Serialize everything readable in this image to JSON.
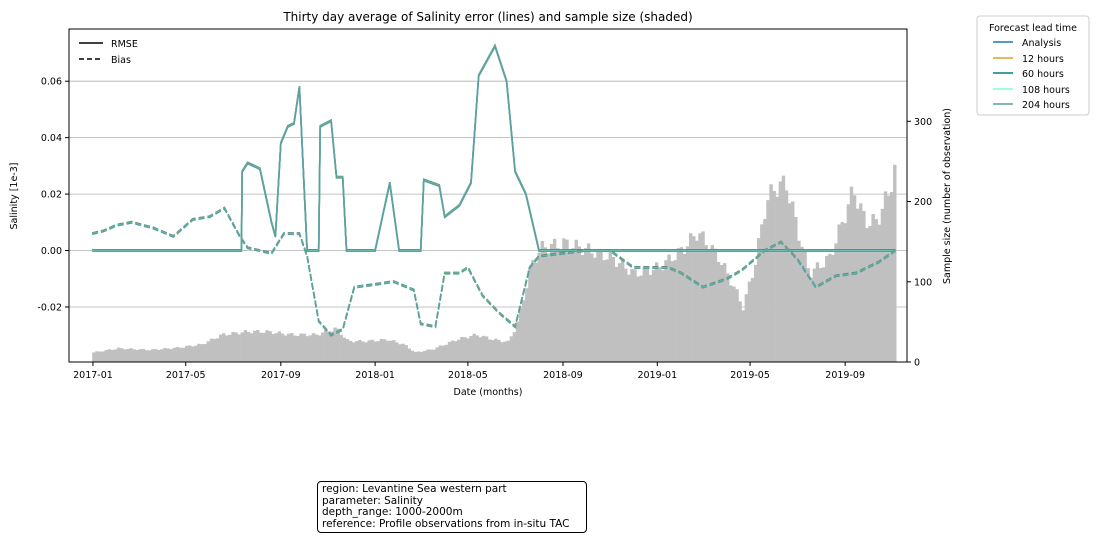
{
  "chart_data": {
    "type": "line",
    "title": "Thirty day average of Salinity error (lines) and sample size (shaded)",
    "xlabel": "Date (months)",
    "ylabel": "Salinity [1e-3]",
    "y2label": "Sample size (number of observation)",
    "xlim": [
      "2016-12-01",
      "2019-11-20"
    ],
    "ylim": [
      -0.0395,
      0.0785
    ],
    "y2lim": [
      0,
      415
    ],
    "x_ticks": [
      "2017-01",
      "2017-05",
      "2017-09",
      "2018-01",
      "2018-05",
      "2018-09",
      "2019-01",
      "2019-05",
      "2019-09"
    ],
    "y_ticks": [
      "-0.02",
      "0.00",
      "0.02",
      "0.04",
      "0.06"
    ],
    "y_tick_values": [
      -0.02,
      0.0,
      0.02,
      0.04,
      0.06
    ],
    "y2_ticks": [
      "0",
      "100",
      "200",
      "300"
    ],
    "y2_tick_values": [
      0,
      100,
      200,
      300
    ],
    "grid": "horizontal",
    "style_legend": {
      "placement": "top-left",
      "entries": [
        {
          "label": "RMSE",
          "dash": "solid"
        },
        {
          "label": "Bias",
          "dash": "dashed"
        }
      ]
    },
    "lead_legend": {
      "title": "Forecast lead time",
      "placement": "outside-right",
      "entries": [
        {
          "label": "Analysis",
          "color": "#1f77b4"
        },
        {
          "label": "12 hours",
          "color": "#daa520"
        },
        {
          "label": "60 hours",
          "color": "#008080"
        },
        {
          "label": "108 hours",
          "color": "#7fffd4"
        },
        {
          "label": "204 hours",
          "color": "#5f9ea0"
        }
      ]
    },
    "sample_size": {
      "color": "#c0c0c0",
      "points": [
        [
          "2016-12-31",
          12
        ],
        [
          "2017-02-01",
          17
        ],
        [
          "2017-03-15",
          15
        ],
        [
          "2017-04-20",
          18
        ],
        [
          "2017-05-20",
          22
        ],
        [
          "2017-06-15",
          34
        ],
        [
          "2017-07-20",
          38
        ],
        [
          "2017-08-10",
          38
        ],
        [
          "2017-09-15",
          34
        ],
        [
          "2017-10-15",
          34
        ],
        [
          "2017-11-10",
          42
        ],
        [
          "2017-11-25",
          26
        ],
        [
          "2017-12-20",
          26
        ],
        [
          "2018-01-15",
          28
        ],
        [
          "2018-02-05",
          22
        ],
        [
          "2018-02-20",
          12
        ],
        [
          "2018-03-15",
          16
        ],
        [
          "2018-04-15",
          28
        ],
        [
          "2018-05-10",
          34
        ],
        [
          "2018-06-01",
          28
        ],
        [
          "2018-06-20",
          25
        ],
        [
          "2018-07-01",
          45
        ],
        [
          "2018-07-10",
          80
        ],
        [
          "2018-07-20",
          120
        ],
        [
          "2018-08-01",
          142
        ],
        [
          "2018-09-01",
          148
        ],
        [
          "2018-10-01",
          140
        ],
        [
          "2018-11-01",
          130
        ],
        [
          "2018-12-01",
          110
        ],
        [
          "2019-01-01",
          118
        ],
        [
          "2019-02-01",
          140
        ],
        [
          "2019-02-20",
          162
        ],
        [
          "2019-03-20",
          130
        ],
        [
          "2019-04-10",
          90
        ],
        [
          "2019-04-20",
          68
        ],
        [
          "2019-05-05",
          120
        ],
        [
          "2019-05-20",
          200
        ],
        [
          "2019-06-01",
          218
        ],
        [
          "2019-06-15",
          222
        ],
        [
          "2019-07-01",
          160
        ],
        [
          "2019-07-15",
          110
        ],
        [
          "2019-08-10",
          130
        ],
        [
          "2019-08-25",
          170
        ],
        [
          "2019-09-10",
          215
        ],
        [
          "2019-09-25",
          175
        ],
        [
          "2019-10-10",
          175
        ],
        [
          "2019-10-25",
          210
        ],
        [
          "2019-11-05",
          250
        ]
      ]
    },
    "series": [
      {
        "name": "RMSE",
        "dash": "solid",
        "color": "#5f9ea0",
        "points": [
          [
            "2016-12-31",
            0.0
          ],
          [
            "2017-07-12",
            0.0
          ],
          [
            "2017-07-13",
            0.028
          ],
          [
            "2017-07-20",
            0.031
          ],
          [
            "2017-08-05",
            0.029
          ],
          [
            "2017-08-20",
            0.01
          ],
          [
            "2017-08-25",
            0.005
          ],
          [
            "2017-09-01",
            0.038
          ],
          [
            "2017-09-10",
            0.044
          ],
          [
            "2017-09-18",
            0.045
          ],
          [
            "2017-09-25",
            0.058
          ],
          [
            "2017-10-05",
            0.0
          ],
          [
            "2017-10-20",
            0.0
          ],
          [
            "2017-10-22",
            0.044
          ],
          [
            "2017-11-05",
            0.046
          ],
          [
            "2017-11-12",
            0.026
          ],
          [
            "2017-11-20",
            0.026
          ],
          [
            "2017-11-25",
            0.0
          ],
          [
            "2018-01-01",
            0.0
          ],
          [
            "2018-01-20",
            0.024
          ],
          [
            "2018-02-01",
            0.0
          ],
          [
            "2018-03-01",
            0.0
          ],
          [
            "2018-03-05",
            0.025
          ],
          [
            "2018-03-25",
            0.023
          ],
          [
            "2018-04-01",
            0.012
          ],
          [
            "2018-04-20",
            0.016
          ],
          [
            "2018-05-05",
            0.024
          ],
          [
            "2018-05-15",
            0.062
          ],
          [
            "2018-06-05",
            0.0725
          ],
          [
            "2018-06-20",
            0.06
          ],
          [
            "2018-07-01",
            0.028
          ],
          [
            "2018-07-15",
            0.02
          ],
          [
            "2018-08-01",
            0.0
          ],
          [
            "2019-11-05",
            0.0
          ]
        ]
      },
      {
        "name": "Bias",
        "dash": "dashed",
        "color": "#5f9ea0",
        "points": [
          [
            "2016-12-31",
            0.006
          ],
          [
            "2017-01-15",
            0.007
          ],
          [
            "2017-02-01",
            0.009
          ],
          [
            "2017-02-20",
            0.01
          ],
          [
            "2017-03-20",
            0.008
          ],
          [
            "2017-04-15",
            0.005
          ],
          [
            "2017-05-10",
            0.011
          ],
          [
            "2017-06-01",
            0.012
          ],
          [
            "2017-06-20",
            0.015
          ],
          [
            "2017-07-10",
            0.005
          ],
          [
            "2017-07-20",
            0.001
          ],
          [
            "2017-08-20",
            -0.001
          ],
          [
            "2017-09-05",
            0.006
          ],
          [
            "2017-09-25",
            0.006
          ],
          [
            "2017-10-05",
            -0.002
          ],
          [
            "2017-10-20",
            -0.025
          ],
          [
            "2017-11-05",
            -0.03
          ],
          [
            "2017-11-20",
            -0.028
          ],
          [
            "2017-12-05",
            -0.013
          ],
          [
            "2018-01-01",
            -0.012
          ],
          [
            "2018-01-25",
            -0.011
          ],
          [
            "2018-02-20",
            -0.014
          ],
          [
            "2018-03-01",
            -0.026
          ],
          [
            "2018-03-20",
            -0.027
          ],
          [
            "2018-04-01",
            -0.008
          ],
          [
            "2018-04-20",
            -0.008
          ],
          [
            "2018-05-01",
            -0.006
          ],
          [
            "2018-05-20",
            -0.016
          ],
          [
            "2018-06-10",
            -0.022
          ],
          [
            "2018-07-01",
            -0.027
          ],
          [
            "2018-07-20",
            -0.006
          ],
          [
            "2018-08-01",
            -0.002
          ],
          [
            "2018-09-01",
            -0.001
          ],
          [
            "2018-10-01",
            0.0
          ],
          [
            "2018-11-01",
            0.0
          ],
          [
            "2018-12-01",
            -0.006
          ],
          [
            "2019-01-15",
            -0.006
          ],
          [
            "2019-02-01",
            -0.008
          ],
          [
            "2019-03-01",
            -0.013
          ],
          [
            "2019-04-01",
            -0.01
          ],
          [
            "2019-04-20",
            -0.007
          ],
          [
            "2019-05-20",
            0.0
          ],
          [
            "2019-06-10",
            0.003
          ],
          [
            "2019-07-01",
            -0.003
          ],
          [
            "2019-07-25",
            -0.013
          ],
          [
            "2019-08-20",
            -0.009
          ],
          [
            "2019-09-15",
            -0.008
          ],
          [
            "2019-10-15",
            -0.004
          ],
          [
            "2019-11-05",
            0.0
          ]
        ]
      }
    ]
  },
  "info_box": {
    "region": "region: Levantine Sea western part",
    "parameter": "parameter: Salinity",
    "depth_range": "depth_range: 1000-2000m",
    "reference": "reference: Profile observations from in-situ TAC"
  }
}
